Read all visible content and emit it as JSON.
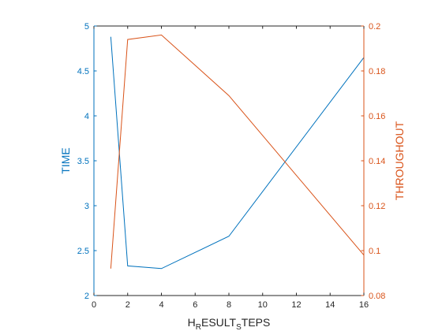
{
  "chart_data": {
    "type": "line",
    "x": [
      1,
      2,
      4,
      8,
      16
    ],
    "xlabel": "H_RESULT_STEPS",
    "xlabel_parts": {
      "base1": "H",
      "sub1": "R",
      "base2": "ESULT",
      "sub2": "S",
      "base3": "TEPS"
    },
    "xlim": [
      0,
      16
    ],
    "xticks": [
      0,
      2,
      4,
      6,
      8,
      10,
      12,
      14,
      16
    ],
    "left_axis": {
      "label": "TIME",
      "color": "#0072BD",
      "ylim": [
        2,
        5
      ],
      "yticks": [
        2,
        2.5,
        3,
        3.5,
        4,
        4.5,
        5
      ]
    },
    "right_axis": {
      "label": "THROUGHOUT",
      "color": "#D95319",
      "ylim": [
        0.08,
        0.2
      ],
      "yticks": [
        0.08,
        0.1,
        0.12,
        0.14,
        0.16,
        0.18,
        0.2
      ]
    },
    "series": [
      {
        "axis": "left",
        "color": "#0072BD",
        "values": [
          4.88,
          2.33,
          2.3,
          2.66,
          4.65
        ]
      },
      {
        "axis": "right",
        "color": "#D95319",
        "values": [
          0.092,
          0.194,
          0.196,
          0.169,
          0.098
        ]
      }
    ],
    "grid": false,
    "box": true
  }
}
